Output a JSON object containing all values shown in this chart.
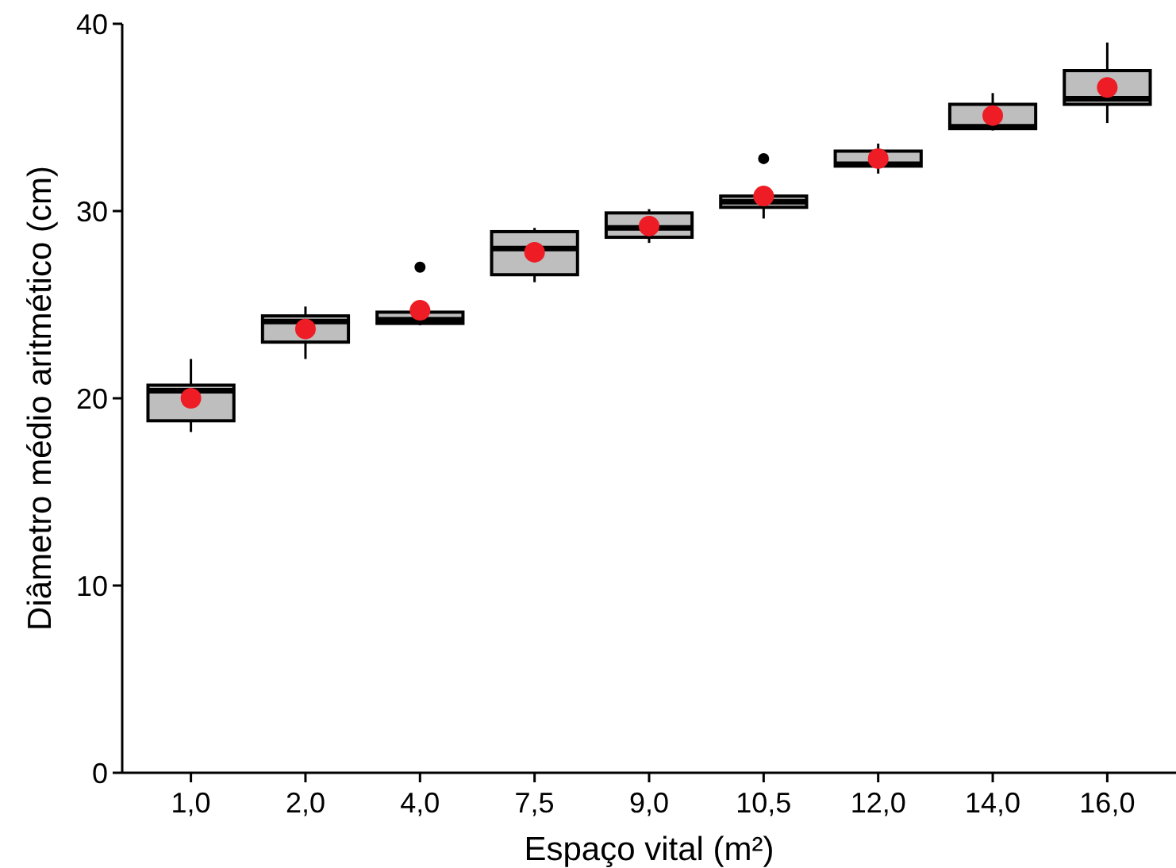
{
  "chart_data": {
    "type": "box",
    "xlabel": "Espaço vital (m²)",
    "ylabel": "Diâmetro médio aritmético (cm)",
    "categories": [
      "1,0",
      "2,0",
      "4,0",
      "7,5",
      "9,0",
      "10,5",
      "12,0",
      "14,0",
      "16,0"
    ],
    "ylim": [
      0,
      40
    ],
    "yticks": [
      0,
      10,
      20,
      30,
      40
    ],
    "grid": false,
    "series": [
      {
        "type": "box",
        "color": "#bebebe",
        "boxes": [
          {
            "low": 18.2,
            "q1": 18.8,
            "median": 20.4,
            "q3": 20.7,
            "high": 22.1
          },
          {
            "low": 22.1,
            "q1": 23.0,
            "median": 24.1,
            "q3": 24.4,
            "high": 24.9
          },
          {
            "low": 23.9,
            "q1": 24.0,
            "median": 24.2,
            "q3": 24.6,
            "high": 24.6,
            "outliers": [
              27.0
            ]
          },
          {
            "low": 26.2,
            "q1": 26.6,
            "median": 28.0,
            "q3": 28.9,
            "high": 29.1
          },
          {
            "low": 28.3,
            "q1": 28.6,
            "median": 29.1,
            "q3": 29.9,
            "high": 30.1
          },
          {
            "low": 29.6,
            "q1": 30.2,
            "median": 30.5,
            "q3": 30.8,
            "high": 30.8,
            "outliers": [
              32.8
            ]
          },
          {
            "low": 32.0,
            "q1": 32.4,
            "median": 32.5,
            "q3": 33.2,
            "high": 33.6
          },
          {
            "low": 34.3,
            "q1": 34.4,
            "median": 34.5,
            "q3": 35.7,
            "high": 36.3
          },
          {
            "low": 34.7,
            "q1": 35.7,
            "median": 36.0,
            "q3": 37.5,
            "high": 39.0
          }
        ]
      },
      {
        "type": "scatter",
        "color": "#ee1c25",
        "marker": "circle",
        "x": [
          "1,0",
          "2,0",
          "4,0",
          "7,5",
          "9,0",
          "10,5",
          "12,0",
          "14,0",
          "16,0"
        ],
        "values": [
          20.0,
          23.7,
          24.7,
          27.8,
          29.2,
          30.8,
          32.8,
          35.1,
          36.6
        ]
      }
    ]
  }
}
